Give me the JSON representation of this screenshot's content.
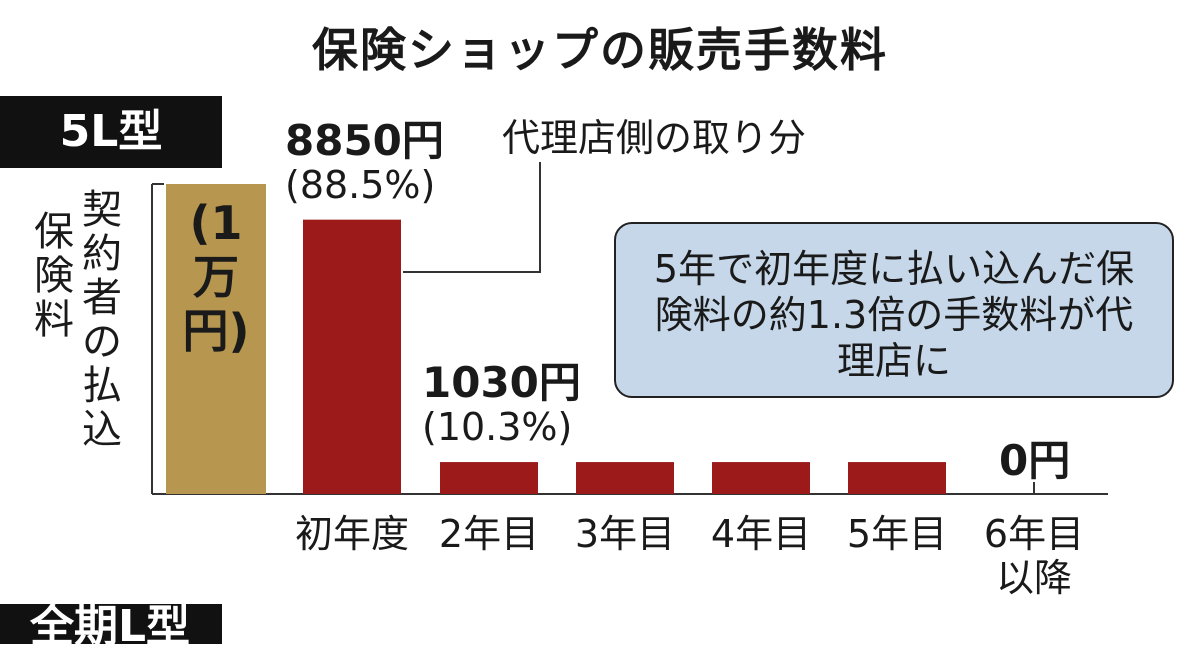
{
  "title": "保険ショップの販売手数料",
  "tag_top": "5L型",
  "tag_bottom": "全期L型",
  "ylabel_col1": "契約者の払込",
  "ylabel_col2": "保険料",
  "paid_bar_label": "(1万円)",
  "share_label": "代理店側の取り分",
  "callout": "5年で初年度に払い込んだ保険料の約1.3倍の手数料が代理店に",
  "colors": {
    "paid": "#b7974f",
    "commission": "#9c1a1a",
    "callout_bg": "#c5d7e8"
  },
  "chart_data": {
    "type": "bar",
    "paid_premium": {
      "label": "(1万円)",
      "value": 10000
    },
    "categories": [
      "初年度",
      "2年目",
      "3年目",
      "4年目",
      "5年目",
      "6年目以降"
    ],
    "values": [
      8850,
      1030,
      1030,
      1030,
      1030,
      0
    ],
    "value_labels": [
      "8850円",
      "1030円",
      "",
      "",
      "",
      "0円"
    ],
    "percent_labels": [
      "(88.5%)",
      "(10.3%)",
      "",
      "",
      "",
      ""
    ],
    "ylabel": "契約者の払込保険料",
    "ylim": [
      0,
      10000
    ],
    "grid": false
  }
}
